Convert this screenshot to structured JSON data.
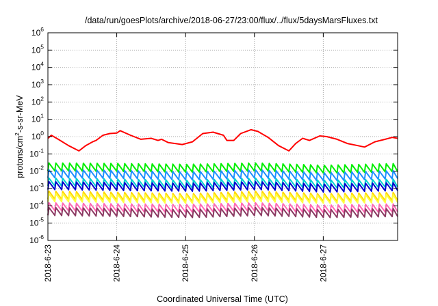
{
  "chart_data": {
    "type": "line",
    "title": "/data/run/goesPlots/archive/2018-06-27/23:00/flux/../flux/5daysMarsFluxes.txt",
    "xlabel": "Coordinated Universal Time (UTC)",
    "ylabel": "protons/cm²-s-sr-MeV",
    "ylabel_parts": [
      "protons/cm",
      "2",
      "-s-sr-MeV"
    ],
    "y_scale": "log",
    "ylim": [
      1e-06,
      1000000.0
    ],
    "y_ticks": [
      {
        "base": "10",
        "exp": "-6"
      },
      {
        "base": "10",
        "exp": "-5"
      },
      {
        "base": "10",
        "exp": "-4"
      },
      {
        "base": "10",
        "exp": "-3"
      },
      {
        "base": "10",
        "exp": "-2"
      },
      {
        "base": "10",
        "exp": "-1"
      },
      {
        "base": "10",
        "exp": "0"
      },
      {
        "base": "10",
        "exp": "1"
      },
      {
        "base": "10",
        "exp": "2"
      },
      {
        "base": "10",
        "exp": "3"
      },
      {
        "base": "10",
        "exp": "4"
      },
      {
        "base": "10",
        "exp": "5"
      },
      {
        "base": "10",
        "exp": "6"
      }
    ],
    "x_ticks": [
      "2018-6-23",
      "2018-6-24",
      "2018-6-25",
      "2018-6-26",
      "2018-6-27"
    ],
    "xlim_days": [
      0,
      5.08
    ],
    "grid": true,
    "sawtooth_period_days": 0.1,
    "series": [
      {
        "color": "#ff0000",
        "x": [
          0.0,
          0.05,
          0.15,
          0.3,
          0.45,
          0.55,
          0.65,
          0.7,
          0.8,
          0.9,
          1.0,
          1.05,
          1.2,
          1.35,
          1.5,
          1.6,
          1.65,
          1.75,
          1.85,
          1.95,
          2.1,
          2.25,
          2.4,
          2.55,
          2.6,
          2.7,
          2.8,
          2.95,
          3.05,
          3.2,
          3.35,
          3.5,
          3.6,
          3.7,
          3.8,
          3.95,
          4.05,
          4.2,
          4.35,
          4.5,
          4.6,
          4.75,
          4.9,
          5.0,
          5.08
        ],
        "values": [
          0.8,
          1.2,
          0.7,
          0.3,
          0.15,
          0.3,
          0.5,
          0.6,
          1.2,
          1.5,
          1.6,
          2.2,
          1.2,
          0.7,
          0.8,
          0.6,
          0.7,
          0.45,
          0.4,
          0.35,
          0.5,
          1.5,
          1.8,
          1.2,
          0.6,
          0.6,
          1.5,
          2.5,
          2.0,
          0.9,
          0.3,
          0.15,
          0.4,
          0.8,
          0.6,
          1.1,
          1.0,
          0.7,
          0.4,
          0.3,
          0.25,
          0.5,
          0.7,
          0.9,
          0.8
        ]
      },
      {
        "color": "#00ee00",
        "x": [
          0.0,
          1.0,
          2.0,
          3.0,
          4.0,
          5.08
        ],
        "values": [
          0.03,
          0.028,
          0.025,
          0.03,
          0.022,
          0.028
        ]
      },
      {
        "color": "#1e90ff",
        "x": [
          0.0,
          1.0,
          2.0,
          3.0,
          4.0,
          5.08
        ],
        "values": [
          0.012,
          0.011,
          0.009,
          0.012,
          0.008,
          0.011
        ]
      },
      {
        "color": "#00ced1",
        "x": [
          0.0,
          1.0,
          2.0,
          3.0,
          4.0,
          5.08
        ],
        "values": [
          0.004,
          0.0035,
          0.003,
          0.004,
          0.003,
          0.0035
        ]
      },
      {
        "color": "#0000cd",
        "x": [
          0.0,
          1.0,
          2.0,
          3.0,
          4.0,
          5.08
        ],
        "values": [
          0.0025,
          0.0022,
          0.002,
          0.0025,
          0.0018,
          0.0022
        ]
      },
      {
        "color": "#ffd700",
        "x": [
          0.0,
          1.0,
          2.0,
          3.0,
          4.0,
          5.08
        ],
        "values": [
          0.0007,
          0.0006,
          0.0005,
          0.0007,
          0.0005,
          0.0006
        ]
      },
      {
        "color": "#ffff40",
        "x": [
          0.0,
          1.0,
          2.0,
          3.0,
          4.0,
          5.08
        ],
        "values": [
          0.0005,
          0.00045,
          0.0004,
          0.0005,
          0.0004,
          0.00045
        ]
      },
      {
        "color": "#ff69b4",
        "x": [
          0.0,
          1.0,
          2.0,
          3.0,
          4.0,
          5.08
        ],
        "values": [
          0.00015,
          0.00013,
          0.00012,
          0.00015,
          0.00011,
          0.00013
        ]
      },
      {
        "color": "#8b3a62",
        "x": [
          0.0,
          1.0,
          2.0,
          3.0,
          4.0,
          5.08
        ],
        "values": [
          8e-05,
          7e-05,
          6e-05,
          8e-05,
          6e-05,
          7e-05
        ]
      }
    ]
  }
}
